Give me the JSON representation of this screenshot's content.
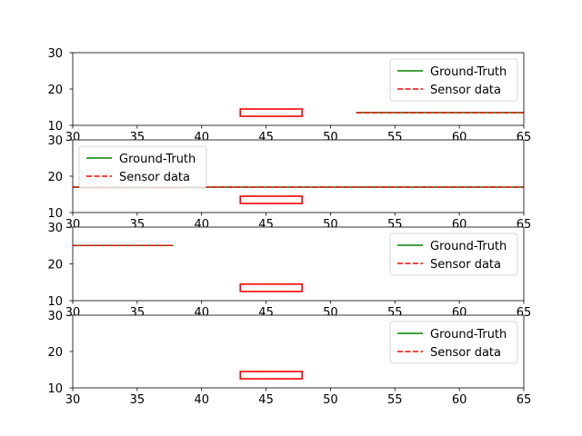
{
  "chart_data": [
    {
      "type": "line",
      "xlim": [
        30,
        65
      ],
      "ylim": [
        10,
        30
      ],
      "xticks": [
        30,
        35,
        40,
        45,
        50,
        55,
        60,
        65
      ],
      "yticks": [
        10,
        20,
        30
      ],
      "legend_position": "upper right",
      "series": [
        {
          "name": "Ground-Truth",
          "color": "#008000",
          "style": "solid",
          "x": [
            52,
            65
          ],
          "y": [
            13.5,
            13.5
          ]
        },
        {
          "name": "Sensor data",
          "color": "#ff0000",
          "style": "dashed",
          "x": [
            52,
            65
          ],
          "y": [
            13.5,
            13.5
          ]
        }
      ],
      "rectangle": {
        "x": [
          43,
          47.8
        ],
        "y": [
          12.5,
          14.5
        ],
        "color": "#ff0000"
      }
    },
    {
      "type": "line",
      "xlim": [
        30,
        65
      ],
      "ylim": [
        10,
        30
      ],
      "xticks": [
        30,
        35,
        40,
        45,
        50,
        55,
        60,
        65
      ],
      "yticks": [
        10,
        20,
        30
      ],
      "legend_position": "upper left",
      "series": [
        {
          "name": "Ground-Truth",
          "color": "#008000",
          "style": "solid",
          "x": [
            30,
            65
          ],
          "y": [
            17,
            17
          ]
        },
        {
          "name": "Sensor data",
          "color": "#ff0000",
          "style": "dashed",
          "x": [
            30,
            65
          ],
          "y": [
            17,
            17
          ]
        }
      ],
      "rectangle": {
        "x": [
          43,
          47.8
        ],
        "y": [
          12.5,
          14.5
        ],
        "color": "#ff0000"
      }
    },
    {
      "type": "line",
      "xlim": [
        30,
        65
      ],
      "ylim": [
        10,
        30
      ],
      "xticks": [
        30,
        35,
        40,
        45,
        50,
        55,
        60,
        65
      ],
      "yticks": [
        10,
        20,
        30
      ],
      "legend_position": "upper right",
      "series": [
        {
          "name": "Ground-Truth",
          "color": "#008000",
          "style": "solid",
          "x": [
            30,
            37.8
          ],
          "y": [
            25,
            25
          ]
        },
        {
          "name": "Sensor data",
          "color": "#ff0000",
          "style": "dashed",
          "x": [
            30,
            37.8
          ],
          "y": [
            25,
            25
          ]
        }
      ],
      "rectangle": {
        "x": [
          43,
          47.8
        ],
        "y": [
          12.5,
          14.5
        ],
        "color": "#ff0000"
      }
    },
    {
      "type": "line",
      "xlim": [
        30,
        65
      ],
      "ylim": [
        10,
        30
      ],
      "xticks": [
        30,
        35,
        40,
        45,
        50,
        55,
        60,
        65
      ],
      "yticks": [
        10,
        20,
        30
      ],
      "legend_position": "upper right",
      "series": [
        {
          "name": "Ground-Truth",
          "color": "#008000",
          "style": "solid",
          "x": [],
          "y": []
        },
        {
          "name": "Sensor data",
          "color": "#ff0000",
          "style": "dashed",
          "x": [],
          "y": []
        }
      ],
      "rectangle": {
        "x": [
          43,
          47.8
        ],
        "y": [
          12.5,
          14.5
        ],
        "color": "#ff0000"
      }
    }
  ]
}
